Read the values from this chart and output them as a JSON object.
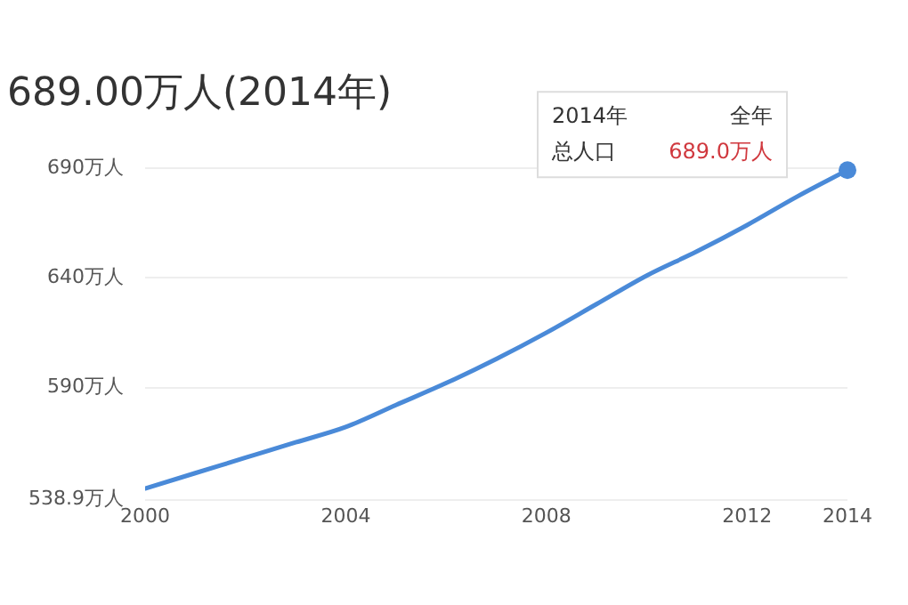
{
  "chart_data": {
    "type": "line",
    "title": "689.00万人(2014年)",
    "x": [
      2000,
      2001,
      2002,
      2003,
      2004,
      2005,
      2006,
      2007,
      2008,
      2009,
      2010,
      2011,
      2012,
      2013,
      2014
    ],
    "series": [
      {
        "color": "#4a8ad8",
        "values": [
          544,
          551,
          558,
          565,
          572,
          582,
          592,
          603,
          615,
          628,
          641,
          652,
          664,
          677,
          689.0
        ]
      }
    ],
    "xlim": [
      2000,
      2014
    ],
    "xticks": [
      2000,
      2004,
      2008,
      2012,
      2014
    ],
    "ylim": [
      538.9,
      690
    ],
    "yticks": [
      {
        "value": 538.9,
        "label": "538.9万人"
      },
      {
        "value": 590,
        "label": "590万人"
      },
      {
        "value": 640,
        "label": "640万人"
      },
      {
        "value": 690,
        "label": "690万人"
      }
    ],
    "grid": "y",
    "legend": false,
    "marker": "none",
    "line_style": "solid",
    "annotations": [
      "2014年",
      "全年",
      "总人口",
      "689.0万人"
    ]
  }
}
